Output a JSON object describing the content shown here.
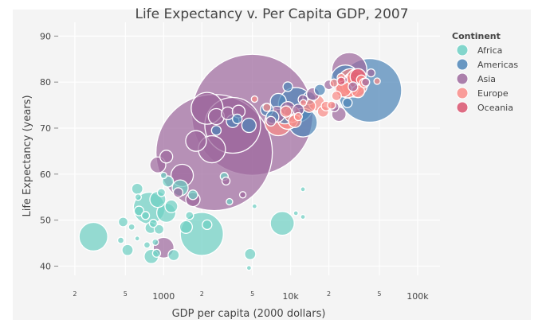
{
  "chart_data": {
    "type": "scatter",
    "title": "Life Expectancy v. Per Capita GDP, 2007",
    "xlabel": "GDP per capita (2000 dollars)",
    "ylabel": "Life Expectancy (years)",
    "x_scale": "log",
    "xlim": [
      150,
      150000
    ],
    "ylim": [
      38,
      93
    ],
    "grid": true,
    "x_ticks_major": [
      {
        "value": 1000,
        "label": "1000"
      },
      {
        "value": 10000,
        "label": "10k"
      },
      {
        "value": 100000,
        "label": "100k"
      }
    ],
    "x_ticks_minor": [
      {
        "value": 200,
        "label": "2"
      },
      {
        "value": 500,
        "label": "5"
      },
      {
        "value": 2000,
        "label": "2"
      },
      {
        "value": 5000,
        "label": "5"
      },
      {
        "value": 20000,
        "label": "2"
      },
      {
        "value": 50000,
        "label": "5"
      }
    ],
    "y_ticks": [
      {
        "value": 40,
        "label": "40"
      },
      {
        "value": 50,
        "label": "50"
      },
      {
        "value": 60,
        "label": "60"
      },
      {
        "value": 70,
        "label": "70"
      },
      {
        "value": 80,
        "label": "80"
      },
      {
        "value": 90,
        "label": "90"
      }
    ],
    "legend": {
      "title": "Continent",
      "placement": "right",
      "items": [
        {
          "name": "Africa",
          "color": "#6fd0c4"
        },
        {
          "name": "Americas",
          "color": "#4f86b8"
        },
        {
          "name": "Asia",
          "color": "#9e6a9e"
        },
        {
          "name": "Europe",
          "color": "#f98c88"
        },
        {
          "name": "Oceania",
          "color": "#d9546f"
        }
      ]
    },
    "series": [
      {
        "name": "Africa",
        "color": "#6fd0c4",
        "points": [
          {
            "x": 280,
            "y": 46.4,
            "size": 18
          },
          {
            "x": 480,
            "y": 49.6,
            "size": 6
          },
          {
            "x": 460,
            "y": 45.6,
            "size": 4
          },
          {
            "x": 520,
            "y": 43.5,
            "size": 7
          },
          {
            "x": 560,
            "y": 48.5,
            "size": 4
          },
          {
            "x": 620,
            "y": 56.8,
            "size": 7
          },
          {
            "x": 630,
            "y": 55.0,
            "size": 4
          },
          {
            "x": 640,
            "y": 52.0,
            "size": 6
          },
          {
            "x": 620,
            "y": 46.0,
            "size": 3
          },
          {
            "x": 720,
            "y": 51.0,
            "size": 5
          },
          {
            "x": 740,
            "y": 44.6,
            "size": 4
          },
          {
            "x": 770,
            "y": 52.6,
            "size": 20
          },
          {
            "x": 790,
            "y": 48.3,
            "size": 7
          },
          {
            "x": 800,
            "y": 42.1,
            "size": 9
          },
          {
            "x": 830,
            "y": 49.3,
            "size": 5
          },
          {
            "x": 860,
            "y": 45.2,
            "size": 4
          },
          {
            "x": 880,
            "y": 42.8,
            "size": 5
          },
          {
            "x": 900,
            "y": 54.5,
            "size": 10
          },
          {
            "x": 920,
            "y": 48.0,
            "size": 6
          },
          {
            "x": 960,
            "y": 56.0,
            "size": 5
          },
          {
            "x": 1000,
            "y": 59.7,
            "size": 4
          },
          {
            "x": 1050,
            "y": 51.6,
            "size": 12
          },
          {
            "x": 1080,
            "y": 58.4,
            "size": 7
          },
          {
            "x": 1150,
            "y": 53.0,
            "size": 8
          },
          {
            "x": 1200,
            "y": 42.4,
            "size": 7
          },
          {
            "x": 1350,
            "y": 57.0,
            "size": 10
          },
          {
            "x": 1500,
            "y": 48.5,
            "size": 8
          },
          {
            "x": 1600,
            "y": 51.0,
            "size": 5
          },
          {
            "x": 1700,
            "y": 55.5,
            "size": 6
          },
          {
            "x": 2000,
            "y": 47.0,
            "size": 27
          },
          {
            "x": 2200,
            "y": 49.0,
            "size": 6
          },
          {
            "x": 3000,
            "y": 59.5,
            "size": 5
          },
          {
            "x": 3300,
            "y": 54.0,
            "size": 4
          },
          {
            "x": 4800,
            "y": 42.6,
            "size": 7
          },
          {
            "x": 4700,
            "y": 39.6,
            "size": 3
          },
          {
            "x": 5200,
            "y": 53.0,
            "size": 3
          },
          {
            "x": 8600,
            "y": 49.3,
            "size": 15
          },
          {
            "x": 11000,
            "y": 51.5,
            "size": 3
          },
          {
            "x": 12500,
            "y": 50.7,
            "size": 3
          },
          {
            "x": 12500,
            "y": 56.7,
            "size": 3
          }
        ]
      },
      {
        "name": "Americas",
        "color": "#4f86b8",
        "points": [
          {
            "x": 42000,
            "y": 78.2,
            "size": 40
          },
          {
            "x": 11000,
            "y": 75.0,
            "size": 22
          },
          {
            "x": 9000,
            "y": 73.0,
            "size": 12
          },
          {
            "x": 12500,
            "y": 71.2,
            "size": 18
          },
          {
            "x": 8000,
            "y": 75.8,
            "size": 10
          },
          {
            "x": 6500,
            "y": 74.0,
            "size": 8
          },
          {
            "x": 7200,
            "y": 72.4,
            "size": 8
          },
          {
            "x": 14000,
            "y": 76.5,
            "size": 8
          },
          {
            "x": 3800,
            "y": 72.0,
            "size": 6
          },
          {
            "x": 3500,
            "y": 71.5,
            "size": 8
          },
          {
            "x": 4700,
            "y": 70.6,
            "size": 9
          },
          {
            "x": 2600,
            "y": 69.5,
            "size": 6
          },
          {
            "x": 9500,
            "y": 79.0,
            "size": 6
          },
          {
            "x": 17000,
            "y": 78.3,
            "size": 7
          },
          {
            "x": 27000,
            "y": 80.6,
            "size": 18
          },
          {
            "x": 28000,
            "y": 75.5,
            "size": 6
          }
        ]
      },
      {
        "name": "Asia",
        "color": "#9e6a9e",
        "points": [
          {
            "x": 5000,
            "y": 72.9,
            "size": 76
          },
          {
            "x": 2500,
            "y": 64.7,
            "size": 73
          },
          {
            "x": 3500,
            "y": 70.6,
            "size": 35
          },
          {
            "x": 2200,
            "y": 74.3,
            "size": 20
          },
          {
            "x": 2400,
            "y": 65.4,
            "size": 17
          },
          {
            "x": 1800,
            "y": 67.2,
            "size": 13
          },
          {
            "x": 1400,
            "y": 59.7,
            "size": 14
          },
          {
            "x": 1700,
            "y": 54.5,
            "size": 9
          },
          {
            "x": 1050,
            "y": 63.8,
            "size": 8
          },
          {
            "x": 900,
            "y": 62.0,
            "size": 10
          },
          {
            "x": 1000,
            "y": 44.0,
            "size": 13
          },
          {
            "x": 1300,
            "y": 56.0,
            "size": 6
          },
          {
            "x": 3100,
            "y": 58.5,
            "size": 5
          },
          {
            "x": 4200,
            "y": 55.5,
            "size": 4
          },
          {
            "x": 2600,
            "y": 72.5,
            "size": 10
          },
          {
            "x": 3200,
            "y": 73.2,
            "size": 8
          },
          {
            "x": 3900,
            "y": 73.6,
            "size": 8
          },
          {
            "x": 7000,
            "y": 71.5,
            "size": 6
          },
          {
            "x": 7800,
            "y": 73.0,
            "size": 10
          },
          {
            "x": 9500,
            "y": 74.2,
            "size": 9
          },
          {
            "x": 11500,
            "y": 74.0,
            "size": 7
          },
          {
            "x": 12500,
            "y": 76.2,
            "size": 6
          },
          {
            "x": 15000,
            "y": 77.4,
            "size": 8
          },
          {
            "x": 20000,
            "y": 79.4,
            "size": 6
          },
          {
            "x": 22000,
            "y": 74.6,
            "size": 6
          },
          {
            "x": 24000,
            "y": 73.0,
            "size": 9
          },
          {
            "x": 26000,
            "y": 80.5,
            "size": 5
          },
          {
            "x": 29000,
            "y": 82.6,
            "size": 22
          },
          {
            "x": 31000,
            "y": 79.0,
            "size": 6
          },
          {
            "x": 39000,
            "y": 80.0,
            "size": 5
          },
          {
            "x": 43000,
            "y": 82.0,
            "size": 5
          }
        ]
      },
      {
        "name": "Europe",
        "color": "#f98c88",
        "points": [
          {
            "x": 8000,
            "y": 71.3,
            "size": 17
          },
          {
            "x": 9500,
            "y": 72.0,
            "size": 13
          },
          {
            "x": 10300,
            "y": 73.0,
            "size": 10
          },
          {
            "x": 10800,
            "y": 71.5,
            "size": 8
          },
          {
            "x": 9200,
            "y": 73.6,
            "size": 7
          },
          {
            "x": 11500,
            "y": 72.5,
            "size": 5
          },
          {
            "x": 12600,
            "y": 75.5,
            "size": 4
          },
          {
            "x": 14000,
            "y": 74.8,
            "size": 8
          },
          {
            "x": 16000,
            "y": 75.5,
            "size": 10
          },
          {
            "x": 18000,
            "y": 73.6,
            "size": 7
          },
          {
            "x": 19000,
            "y": 74.8,
            "size": 6
          },
          {
            "x": 21000,
            "y": 75.0,
            "size": 5
          },
          {
            "x": 23000,
            "y": 77.0,
            "size": 6
          },
          {
            "x": 26000,
            "y": 78.5,
            "size": 10
          },
          {
            "x": 28000,
            "y": 79.0,
            "size": 14
          },
          {
            "x": 30000,
            "y": 80.0,
            "size": 17
          },
          {
            "x": 32000,
            "y": 79.5,
            "size": 16
          },
          {
            "x": 33000,
            "y": 80.8,
            "size": 12
          },
          {
            "x": 34000,
            "y": 78.0,
            "size": 8
          },
          {
            "x": 36000,
            "y": 80.5,
            "size": 6
          },
          {
            "x": 38000,
            "y": 79.8,
            "size": 6
          },
          {
            "x": 25000,
            "y": 81.0,
            "size": 5
          },
          {
            "x": 48000,
            "y": 80.2,
            "size": 4
          },
          {
            "x": 5200,
            "y": 76.3,
            "size": 4
          },
          {
            "x": 6500,
            "y": 74.5,
            "size": 5
          },
          {
            "x": 22000,
            "y": 79.8,
            "size": 5
          }
        ]
      },
      {
        "name": "Oceania",
        "color": "#d9546f",
        "points": [
          {
            "x": 34000,
            "y": 81.2,
            "size": 10
          },
          {
            "x": 25000,
            "y": 80.2,
            "size": 5
          }
        ]
      }
    ]
  }
}
